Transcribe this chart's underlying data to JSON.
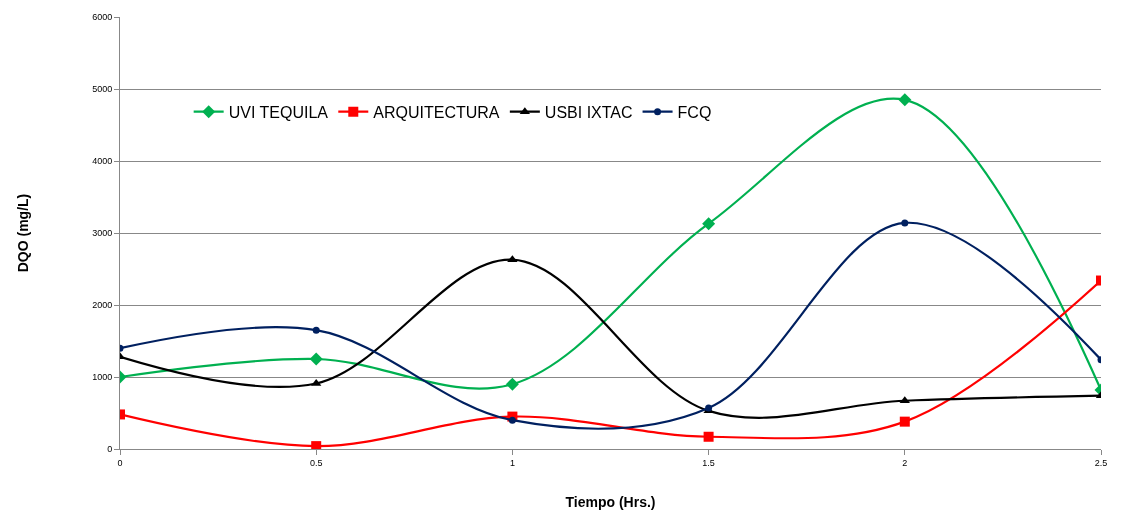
{
  "chart_data": {
    "type": "line",
    "xlabel": "Tiempo (Hrs.)",
    "ylabel": "DQO (mg/L)",
    "x": [
      0,
      0.5,
      1,
      1.5,
      2,
      2.5
    ],
    "series": [
      {
        "name": "UVI TEQUILA",
        "color": "#00b050",
        "marker": "diamond",
        "values": [
          1000,
          1250,
          900,
          3130,
          4850,
          820
        ]
      },
      {
        "name": "ARQUITECTURA",
        "color": "#ff0000",
        "marker": "square",
        "values": [
          480,
          40,
          450,
          170,
          380,
          2340
        ]
      },
      {
        "name": "USBI IXTAC",
        "color": "#000000",
        "marker": "triangle",
        "values": [
          1280,
          910,
          2630,
          530,
          670,
          740
        ]
      },
      {
        "name": "FCQ",
        "color": "#002060",
        "marker": "circle",
        "values": [
          1400,
          1650,
          400,
          570,
          3140,
          1240
        ]
      }
    ],
    "xlim": [
      0,
      2.5
    ],
    "xticks": [
      0,
      0.5,
      1,
      1.5,
      2,
      2.5
    ],
    "ylim": [
      0,
      6000
    ],
    "yticks": [
      0,
      1000,
      2000,
      3000,
      4000,
      5000,
      6000
    ],
    "grid": "y",
    "legend": "top left",
    "line_style": "solid"
  }
}
